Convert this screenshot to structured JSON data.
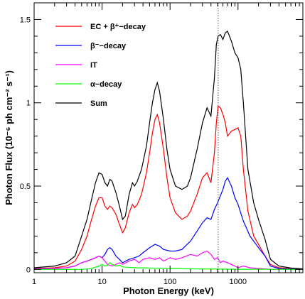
{
  "chart_data": {
    "type": "line",
    "title": "",
    "xlabel": "Photon Energy (keV)",
    "ylabel": "Photon Flux (10⁻⁶ ph cm⁻² s⁻¹)",
    "xscale": "log",
    "xlim": [
      1,
      9000
    ],
    "ylim": [
      -0.02,
      1.6
    ],
    "grid": false,
    "legend_position": "top-left",
    "x_tick_labels": [
      {
        "value": 1,
        "label": "1"
      },
      {
        "value": 10,
        "label": "10"
      },
      {
        "value": 100,
        "label": "100"
      },
      {
        "value": 1000,
        "label": "1000"
      }
    ],
    "y_tick_labels": [
      {
        "value": 0,
        "label": "0"
      },
      {
        "value": 0.5,
        "label": "0.5"
      },
      {
        "value": 1,
        "label": "1"
      },
      {
        "value": 1.5,
        "label": "1.5"
      }
    ],
    "reference_line": {
      "x": 511,
      "style": "dotted"
    },
    "series": [
      {
        "name": "EC + β⁺−decay",
        "color": "#ff0000",
        "points": [
          [
            1,
            0.005
          ],
          [
            2,
            0.01
          ],
          [
            3,
            0.02
          ],
          [
            4,
            0.05
          ],
          [
            5,
            0.12
          ],
          [
            6,
            0.2
          ],
          [
            7,
            0.3
          ],
          [
            8,
            0.38
          ],
          [
            9,
            0.43
          ],
          [
            10,
            0.43
          ],
          [
            11,
            0.38
          ],
          [
            12,
            0.36
          ],
          [
            13,
            0.38
          ],
          [
            14,
            0.37
          ],
          [
            16,
            0.33
          ],
          [
            18,
            0.27
          ],
          [
            20,
            0.22
          ],
          [
            22,
            0.25
          ],
          [
            25,
            0.34
          ],
          [
            28,
            0.39
          ],
          [
            30,
            0.37
          ],
          [
            33,
            0.39
          ],
          [
            38,
            0.45
          ],
          [
            45,
            0.58
          ],
          [
            50,
            0.7
          ],
          [
            55,
            0.82
          ],
          [
            60,
            0.9
          ],
          [
            65,
            0.93
          ],
          [
            70,
            0.88
          ],
          [
            80,
            0.72
          ],
          [
            90,
            0.55
          ],
          [
            100,
            0.43
          ],
          [
            120,
            0.34
          ],
          [
            150,
            0.3
          ],
          [
            180,
            0.32
          ],
          [
            200,
            0.35
          ],
          [
            250,
            0.45
          ],
          [
            300,
            0.55
          ],
          [
            350,
            0.58
          ],
          [
            400,
            0.52
          ],
          [
            450,
            0.7
          ],
          [
            480,
            0.88
          ],
          [
            510,
            0.98
          ],
          [
            550,
            0.97
          ],
          [
            600,
            0.93
          ],
          [
            650,
            0.88
          ],
          [
            700,
            0.8
          ],
          [
            800,
            0.83
          ],
          [
            900,
            0.84
          ],
          [
            1000,
            0.85
          ],
          [
            1100,
            0.8
          ],
          [
            1200,
            0.6
          ],
          [
            1400,
            0.35
          ],
          [
            1700,
            0.2
          ],
          [
            2000,
            0.15
          ],
          [
            2500,
            0.08
          ],
          [
            3000,
            0.03
          ],
          [
            4000,
            0.01
          ],
          [
            6000,
            0.005
          ],
          [
            9000,
            0.002
          ]
        ]
      },
      {
        "name": "β⁻−decay",
        "color": "#0000ff",
        "points": [
          [
            1,
            0.003
          ],
          [
            2,
            0.006
          ],
          [
            3,
            0.01
          ],
          [
            4,
            0.02
          ],
          [
            5,
            0.04
          ],
          [
            6,
            0.05
          ],
          [
            7,
            0.06
          ],
          [
            8,
            0.07
          ],
          [
            9,
            0.08
          ],
          [
            10,
            0.07
          ],
          [
            11,
            0.09
          ],
          [
            12,
            0.12
          ],
          [
            13,
            0.13
          ],
          [
            14,
            0.12
          ],
          [
            16,
            0.08
          ],
          [
            18,
            0.06
          ],
          [
            20,
            0.04
          ],
          [
            25,
            0.06
          ],
          [
            30,
            0.07
          ],
          [
            35,
            0.08
          ],
          [
            40,
            0.1
          ],
          [
            50,
            0.13
          ],
          [
            60,
            0.15
          ],
          [
            70,
            0.14
          ],
          [
            80,
            0.12
          ],
          [
            100,
            0.11
          ],
          [
            120,
            0.11
          ],
          [
            150,
            0.12
          ],
          [
            200,
            0.17
          ],
          [
            250,
            0.23
          ],
          [
            300,
            0.28
          ],
          [
            350,
            0.31
          ],
          [
            400,
            0.3
          ],
          [
            450,
            0.36
          ],
          [
            500,
            0.4
          ],
          [
            600,
            0.48
          ],
          [
            650,
            0.53
          ],
          [
            700,
            0.55
          ],
          [
            800,
            0.5
          ],
          [
            900,
            0.43
          ],
          [
            1000,
            0.39
          ],
          [
            1200,
            0.29
          ],
          [
            1500,
            0.2
          ],
          [
            2000,
            0.13
          ],
          [
            2500,
            0.08
          ],
          [
            3000,
            0.02
          ],
          [
            4000,
            0.005
          ],
          [
            9000,
            0.0
          ]
        ]
      },
      {
        "name": "IT",
        "color": "#ff00ff",
        "points": [
          [
            1,
            0.002
          ],
          [
            2,
            0.005
          ],
          [
            3,
            0.01
          ],
          [
            4,
            0.02
          ],
          [
            5,
            0.04
          ],
          [
            6,
            0.05
          ],
          [
            7,
            0.06
          ],
          [
            8,
            0.07
          ],
          [
            9,
            0.08
          ],
          [
            10,
            0.07
          ],
          [
            11,
            0.05
          ],
          [
            12,
            0.03
          ],
          [
            14,
            0.02
          ],
          [
            16,
            0.03
          ],
          [
            18,
            0.04
          ],
          [
            20,
            0.03
          ],
          [
            25,
            0.05
          ],
          [
            30,
            0.06
          ],
          [
            35,
            0.04
          ],
          [
            40,
            0.06
          ],
          [
            50,
            0.07
          ],
          [
            60,
            0.06
          ],
          [
            70,
            0.07
          ],
          [
            80,
            0.05
          ],
          [
            100,
            0.07
          ],
          [
            120,
            0.06
          ],
          [
            150,
            0.07
          ],
          [
            200,
            0.09
          ],
          [
            250,
            0.08
          ],
          [
            300,
            0.1
          ],
          [
            350,
            0.11
          ],
          [
            400,
            0.09
          ],
          [
            450,
            0.06
          ],
          [
            500,
            0.07
          ],
          [
            550,
            0.04
          ],
          [
            600,
            0.05
          ],
          [
            700,
            0.04
          ],
          [
            800,
            0.03
          ],
          [
            900,
            0.02
          ],
          [
            1000,
            0.01
          ],
          [
            1200,
            0.02
          ],
          [
            1500,
            0.01
          ],
          [
            2000,
            0.005
          ],
          [
            3000,
            0.001
          ],
          [
            9000,
            0.0
          ]
        ]
      },
      {
        "name": "α−decay",
        "color": "#00ff00",
        "points": [
          [
            1,
            0.0
          ],
          [
            5,
            0.0
          ],
          [
            7,
            0.005
          ],
          [
            9,
            0.02
          ],
          [
            10,
            0.03
          ],
          [
            11,
            0.02
          ],
          [
            12,
            0.025
          ],
          [
            13,
            0.04
          ],
          [
            14,
            0.03
          ],
          [
            16,
            0.02
          ],
          [
            18,
            0.025
          ],
          [
            20,
            0.015
          ],
          [
            30,
            0.01
          ],
          [
            50,
            0.008
          ],
          [
            100,
            0.005
          ],
          [
            200,
            0.003
          ],
          [
            500,
            0.002
          ],
          [
            1000,
            0.001
          ],
          [
            9000,
            0.0
          ]
        ]
      },
      {
        "name": "Sum",
        "color": "#000000",
        "points": [
          [
            1,
            0.01
          ],
          [
            2,
            0.02
          ],
          [
            3,
            0.04
          ],
          [
            4,
            0.08
          ],
          [
            5,
            0.2
          ],
          [
            6,
            0.3
          ],
          [
            7,
            0.42
          ],
          [
            8,
            0.52
          ],
          [
            9,
            0.58
          ],
          [
            10,
            0.57
          ],
          [
            11,
            0.52
          ],
          [
            12,
            0.5
          ],
          [
            13,
            0.54
          ],
          [
            14,
            0.53
          ],
          [
            16,
            0.46
          ],
          [
            18,
            0.38
          ],
          [
            20,
            0.3
          ],
          [
            22,
            0.32
          ],
          [
            25,
            0.45
          ],
          [
            28,
            0.52
          ],
          [
            30,
            0.5
          ],
          [
            33,
            0.53
          ],
          [
            38,
            0.6
          ],
          [
            45,
            0.74
          ],
          [
            50,
            0.88
          ],
          [
            55,
            1.0
          ],
          [
            60,
            1.08
          ],
          [
            65,
            1.12
          ],
          [
            70,
            1.07
          ],
          [
            80,
            0.9
          ],
          [
            90,
            0.72
          ],
          [
            100,
            0.6
          ],
          [
            120,
            0.5
          ],
          [
            150,
            0.48
          ],
          [
            180,
            0.5
          ],
          [
            200,
            0.55
          ],
          [
            250,
            0.72
          ],
          [
            300,
            0.88
          ],
          [
            350,
            0.97
          ],
          [
            400,
            0.92
          ],
          [
            450,
            1.15
          ],
          [
            480,
            1.35
          ],
          [
            510,
            1.4
          ],
          [
            550,
            1.41
          ],
          [
            600,
            1.38
          ],
          [
            650,
            1.42
          ],
          [
            700,
            1.43
          ],
          [
            800,
            1.37
          ],
          [
            900,
            1.3
          ],
          [
            1000,
            1.27
          ],
          [
            1100,
            1.2
          ],
          [
            1200,
            1.0
          ],
          [
            1400,
            0.6
          ],
          [
            1700,
            0.4
          ],
          [
            2000,
            0.3
          ],
          [
            2500,
            0.18
          ],
          [
            3000,
            0.06
          ],
          [
            4000,
            0.02
          ],
          [
            6000,
            0.008
          ],
          [
            9000,
            0.003
          ]
        ]
      }
    ]
  }
}
